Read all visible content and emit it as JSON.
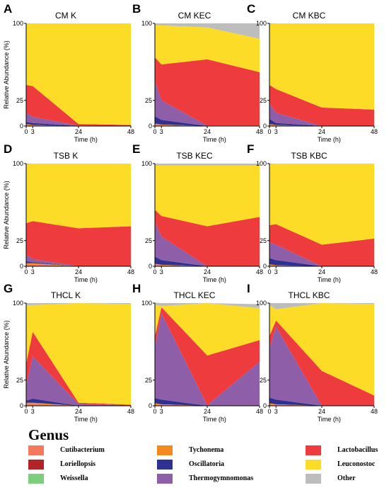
{
  "figure": {
    "legend_title": "Genus",
    "genera": [
      {
        "key": "cutibacterium",
        "label": "Cutibacterium",
        "color": "#F47A5E"
      },
      {
        "key": "tychonema",
        "label": "Tychonema",
        "color": "#F28A1E"
      },
      {
        "key": "lactobacillus",
        "label": "Lactobacillus",
        "color": "#EE3C3E"
      },
      {
        "key": "loriellopsis",
        "label": "Loriellopsis",
        "color": "#B22428"
      },
      {
        "key": "oscillatoria",
        "label": "Oscillatoria",
        "color": "#2E3192"
      },
      {
        "key": "leuconostoc",
        "label": "Leuconostoc",
        "color": "#FDDC28"
      },
      {
        "key": "weissella",
        "label": "Weissella",
        "color": "#7CCD7C"
      },
      {
        "key": "thermogymnomonas",
        "label": "Thermogymnomonas",
        "color": "#8E5EA8"
      },
      {
        "key": "other",
        "label": "Other",
        "color": "#BDBDBD"
      }
    ]
  },
  "chart_data": [
    {
      "type": "area",
      "panel": "A",
      "title": "CM K",
      "x": [
        0,
        3,
        24,
        48
      ],
      "xlabel": "Time (h)",
      "ylabel": "Relative Abundance (%)",
      "xticks": [
        "0",
        "3",
        "24",
        "48"
      ],
      "yticks": [
        "0",
        "25",
        "100"
      ],
      "xlim": [
        0,
        48
      ],
      "stack_order": [
        "cutibacterium",
        "tychonema",
        "loriellopsis",
        "weissella",
        "oscillatoria",
        "thermogymnomonas",
        "lactobacillus",
        "leuconostoc",
        "other"
      ],
      "series": [
        {
          "genus": "cutibacterium",
          "values": [
            1,
            0.5,
            0,
            0
          ]
        },
        {
          "genus": "tychonema",
          "values": [
            1,
            0.5,
            0,
            0
          ]
        },
        {
          "genus": "loriellopsis",
          "values": [
            0,
            0,
            0,
            0
          ]
        },
        {
          "genus": "weissella",
          "values": [
            0,
            0,
            0,
            0
          ]
        },
        {
          "genus": "oscillatoria",
          "values": [
            2,
            2,
            0,
            0
          ]
        },
        {
          "genus": "thermogymnomonas",
          "values": [
            9,
            6,
            0.5,
            0
          ]
        },
        {
          "genus": "lactobacillus",
          "values": [
            27,
            30,
            1.5,
            1
          ]
        },
        {
          "genus": "leuconostoc",
          "values": [
            60,
            61,
            98,
            99
          ]
        },
        {
          "genus": "other",
          "values": [
            0,
            0,
            0,
            0
          ]
        }
      ]
    },
    {
      "type": "area",
      "panel": "B",
      "title": "CM KEC",
      "x": [
        0,
        3,
        24,
        48
      ],
      "xlabel": "Time (h)",
      "ylabel": "Relative Abundance (%)",
      "xticks": [
        "0",
        "3",
        "24",
        "48"
      ],
      "yticks": [
        "0",
        "25",
        "100"
      ],
      "xlim": [
        0,
        48
      ],
      "stack_order": [
        "cutibacterium",
        "tychonema",
        "loriellopsis",
        "weissella",
        "oscillatoria",
        "thermogymnomonas",
        "lactobacillus",
        "leuconostoc",
        "other"
      ],
      "series": [
        {
          "genus": "cutibacterium",
          "values": [
            1.5,
            1,
            0,
            0
          ]
        },
        {
          "genus": "tychonema",
          "values": [
            1,
            0.5,
            0,
            0
          ]
        },
        {
          "genus": "loriellopsis",
          "values": [
            0,
            0,
            0,
            0
          ]
        },
        {
          "genus": "weissella",
          "values": [
            0,
            0,
            0,
            0
          ]
        },
        {
          "genus": "oscillatoria",
          "values": [
            7,
            4.5,
            0,
            0
          ]
        },
        {
          "genus": "thermogymnomonas",
          "values": [
            35,
            19,
            0.5,
            0.5
          ]
        },
        {
          "genus": "lactobacillus",
          "values": [
            22.5,
            35,
            64.5,
            52
          ]
        },
        {
          "genus": "leuconostoc",
          "values": [
            31,
            38,
            31,
            32.5
          ]
        },
        {
          "genus": "other",
          "values": [
            2,
            2,
            4,
            15
          ]
        }
      ]
    },
    {
      "type": "area",
      "panel": "C",
      "title": "CM KBC",
      "x": [
        0,
        3,
        24,
        48
      ],
      "xlabel": "Time (h)",
      "ylabel": "Relative Abundance (%)",
      "xticks": [
        "0",
        "3",
        "24",
        "48"
      ],
      "yticks": [
        "0",
        "25",
        "100"
      ],
      "xlim": [
        0,
        48
      ],
      "stack_order": [
        "cutibacterium",
        "tychonema",
        "loriellopsis",
        "weissella",
        "oscillatoria",
        "thermogymnomonas",
        "lactobacillus",
        "leuconostoc",
        "other"
      ],
      "series": [
        {
          "genus": "cutibacterium",
          "values": [
            1,
            0.5,
            0,
            0
          ]
        },
        {
          "genus": "tychonema",
          "values": [
            1,
            0.5,
            0,
            0
          ]
        },
        {
          "genus": "loriellopsis",
          "values": [
            0,
            0,
            0,
            0
          ]
        },
        {
          "genus": "weissella",
          "values": [
            0,
            0,
            0,
            0
          ]
        },
        {
          "genus": "oscillatoria",
          "values": [
            5,
            2,
            0,
            0
          ]
        },
        {
          "genus": "thermogymnomonas",
          "values": [
            15,
            10,
            0,
            0
          ]
        },
        {
          "genus": "lactobacillus",
          "values": [
            18,
            23,
            18,
            16
          ]
        },
        {
          "genus": "leuconostoc",
          "values": [
            59,
            64,
            82,
            84
          ]
        },
        {
          "genus": "other",
          "values": [
            1,
            0,
            0,
            0
          ]
        }
      ]
    },
    {
      "type": "area",
      "panel": "D",
      "title": "TSB K",
      "x": [
        0,
        3,
        24,
        48
      ],
      "xlabel": "Time (h)",
      "ylabel": "Relative Abundance (%)",
      "xticks": [
        "0",
        "3",
        "24",
        "48"
      ],
      "yticks": [
        "0",
        "25",
        "100"
      ],
      "xlim": [
        0,
        48
      ],
      "stack_order": [
        "cutibacterium",
        "tychonema",
        "loriellopsis",
        "weissella",
        "oscillatoria",
        "thermogymnomonas",
        "lactobacillus",
        "leuconostoc",
        "other"
      ],
      "series": [
        {
          "genus": "cutibacterium",
          "values": [
            2,
            2,
            0,
            0
          ]
        },
        {
          "genus": "tychonema",
          "values": [
            1,
            1,
            0,
            0
          ]
        },
        {
          "genus": "loriellopsis",
          "values": [
            0,
            0,
            0,
            0
          ]
        },
        {
          "genus": "weissella",
          "values": [
            0,
            0,
            0,
            0
          ]
        },
        {
          "genus": "oscillatoria",
          "values": [
            2,
            1,
            0,
            0
          ]
        },
        {
          "genus": "thermogymnomonas",
          "values": [
            6,
            3,
            0,
            0
          ]
        },
        {
          "genus": "lactobacillus",
          "values": [
            31,
            37,
            37,
            39
          ]
        },
        {
          "genus": "leuconostoc",
          "values": [
            57,
            56,
            63,
            61
          ]
        },
        {
          "genus": "other",
          "values": [
            1,
            0,
            0,
            0
          ]
        }
      ]
    },
    {
      "type": "area",
      "panel": "E",
      "title": "TSB KEC",
      "x": [
        0,
        3,
        24,
        48
      ],
      "xlabel": "Time (h)",
      "ylabel": "Relative Abundance (%)",
      "xticks": [
        "0",
        "3",
        "24",
        "48"
      ],
      "yticks": [
        "0",
        "25",
        "100"
      ],
      "xlim": [
        0,
        48
      ],
      "stack_order": [
        "cutibacterium",
        "tychonema",
        "loriellopsis",
        "weissella",
        "oscillatoria",
        "thermogymnomonas",
        "lactobacillus",
        "leuconostoc",
        "other"
      ],
      "series": [
        {
          "genus": "cutibacterium",
          "values": [
            1.5,
            1,
            0,
            0
          ]
        },
        {
          "genus": "tychonema",
          "values": [
            1,
            0.5,
            0,
            0
          ]
        },
        {
          "genus": "loriellopsis",
          "values": [
            0,
            0,
            0,
            0
          ]
        },
        {
          "genus": "weissella",
          "values": [
            0,
            0,
            0,
            0
          ]
        },
        {
          "genus": "oscillatoria",
          "values": [
            7,
            4.5,
            0,
            0
          ]
        },
        {
          "genus": "thermogymnomonas",
          "values": [
            33.5,
            23,
            0,
            0
          ]
        },
        {
          "genus": "lactobacillus",
          "values": [
            12,
            20,
            39,
            48
          ]
        },
        {
          "genus": "leuconostoc",
          "values": [
            43,
            49,
            59,
            50
          ]
        },
        {
          "genus": "other",
          "values": [
            2,
            2,
            2,
            2
          ]
        }
      ]
    },
    {
      "type": "area",
      "panel": "F",
      "title": "TSB KBC",
      "x": [
        0,
        3,
        24,
        48
      ],
      "xlabel": "Time (h)",
      "ylabel": "Relative Abundance (%)",
      "xticks": [
        "0",
        "3",
        "24",
        "48"
      ],
      "yticks": [
        "0",
        "25",
        "100"
      ],
      "xlim": [
        0,
        48
      ],
      "stack_order": [
        "cutibacterium",
        "tychonema",
        "loriellopsis",
        "weissella",
        "oscillatoria",
        "thermogymnomonas",
        "lactobacillus",
        "leuconostoc",
        "other"
      ],
      "series": [
        {
          "genus": "cutibacterium",
          "values": [
            1,
            0.5,
            0,
            0
          ]
        },
        {
          "genus": "tychonema",
          "values": [
            1,
            0.5,
            0,
            0
          ]
        },
        {
          "genus": "loriellopsis",
          "values": [
            0,
            0,
            0,
            0
          ]
        },
        {
          "genus": "weissella",
          "values": [
            0,
            0,
            0,
            0
          ]
        },
        {
          "genus": "oscillatoria",
          "values": [
            6,
            5,
            0,
            0
          ]
        },
        {
          "genus": "thermogymnomonas",
          "values": [
            15,
            15,
            0,
            0
          ]
        },
        {
          "genus": "lactobacillus",
          "values": [
            17,
            20,
            21,
            27
          ]
        },
        {
          "genus": "leuconostoc",
          "values": [
            59,
            59,
            79,
            73
          ]
        },
        {
          "genus": "other",
          "values": [
            1,
            0,
            0,
            0
          ]
        }
      ]
    },
    {
      "type": "area",
      "panel": "G",
      "title": "THCL K",
      "x": [
        0,
        3,
        24,
        48
      ],
      "xlabel": "Time (h)",
      "ylabel": "Relative Abundance (%)",
      "xticks": [
        "0",
        "3",
        "24",
        "48"
      ],
      "yticks": [
        "0",
        "25",
        "100"
      ],
      "xlim": [
        0,
        48
      ],
      "stack_order": [
        "cutibacterium",
        "tychonema",
        "loriellopsis",
        "weissella",
        "oscillatoria",
        "thermogymnomonas",
        "lactobacillus",
        "leuconostoc",
        "other"
      ],
      "series": [
        {
          "genus": "cutibacterium",
          "values": [
            2,
            2,
            0,
            0
          ]
        },
        {
          "genus": "tychonema",
          "values": [
            1,
            1,
            0,
            0
          ]
        },
        {
          "genus": "loriellopsis",
          "values": [
            0,
            0,
            0,
            0
          ]
        },
        {
          "genus": "weissella",
          "values": [
            0,
            0,
            0,
            0
          ]
        },
        {
          "genus": "oscillatoria",
          "values": [
            2,
            4,
            0,
            0
          ]
        },
        {
          "genus": "thermogymnomonas",
          "values": [
            15,
            41,
            2,
            0
          ]
        },
        {
          "genus": "lactobacillus",
          "values": [
            21,
            24,
            1,
            1
          ]
        },
        {
          "genus": "leuconostoc",
          "values": [
            57,
            26,
            97,
            98
          ]
        },
        {
          "genus": "other",
          "values": [
            2,
            2,
            0,
            1
          ]
        }
      ]
    },
    {
      "type": "area",
      "panel": "H",
      "title": "THCL KEC",
      "x": [
        0,
        3,
        24,
        48
      ],
      "xlabel": "Time (h)",
      "ylabel": "Relative Abundance (%)",
      "xticks": [
        "0",
        "3",
        "24",
        "48"
      ],
      "yticks": [
        "0",
        "25",
        "100"
      ],
      "xlim": [
        0,
        48
      ],
      "stack_order": [
        "cutibacterium",
        "tychonema",
        "loriellopsis",
        "weissella",
        "oscillatoria",
        "thermogymnomonas",
        "lactobacillus",
        "leuconostoc",
        "other"
      ],
      "series": [
        {
          "genus": "cutibacterium",
          "values": [
            1.5,
            1,
            0,
            0
          ]
        },
        {
          "genus": "tychonema",
          "values": [
            1,
            0.5,
            0,
            0
          ]
        },
        {
          "genus": "loriellopsis",
          "values": [
            0,
            0,
            0,
            0
          ]
        },
        {
          "genus": "weissella",
          "values": [
            0,
            0,
            0,
            0
          ]
        },
        {
          "genus": "oscillatoria",
          "values": [
            5,
            4.5,
            0,
            0
          ]
        },
        {
          "genus": "thermogymnomonas",
          "values": [
            49.5,
            84,
            0.5,
            43
          ]
        },
        {
          "genus": "lactobacillus",
          "values": [
            10.5,
            6,
            48.5,
            21
          ]
        },
        {
          "genus": "leuconostoc",
          "values": [
            31,
            1,
            51,
            31
          ]
        },
        {
          "genus": "other",
          "values": [
            2,
            3,
            0,
            4
          ]
        }
      ]
    },
    {
      "type": "area",
      "panel": "I",
      "title": "THCL KBC",
      "x": [
        0,
        3,
        24,
        48
      ],
      "xlabel": "Time (h)",
      "ylabel": "Relative Abundance (%)",
      "xticks": [
        "0",
        "3",
        "24",
        "48"
      ],
      "yticks": [
        "0",
        "25",
        "100"
      ],
      "xlim": [
        0,
        48
      ],
      "stack_order": [
        "cutibacterium",
        "tychonema",
        "loriellopsis",
        "weissella",
        "oscillatoria",
        "thermogymnomonas",
        "lactobacillus",
        "leuconostoc",
        "other"
      ],
      "series": [
        {
          "genus": "cutibacterium",
          "values": [
            1.5,
            1,
            0,
            0
          ]
        },
        {
          "genus": "tychonema",
          "values": [
            1,
            0.5,
            0,
            0
          ]
        },
        {
          "genus": "loriellopsis",
          "values": [
            0,
            0,
            0,
            0
          ]
        },
        {
          "genus": "weissella",
          "values": [
            0,
            0,
            0,
            0
          ]
        },
        {
          "genus": "oscillatoria",
          "values": [
            5.5,
            4.5,
            0,
            0
          ]
        },
        {
          "genus": "thermogymnomonas",
          "values": [
            48,
            71,
            0,
            0
          ]
        },
        {
          "genus": "lactobacillus",
          "values": [
            12,
            6,
            34,
            10
          ]
        },
        {
          "genus": "leuconostoc",
          "values": [
            30,
            11,
            66,
            89
          ]
        },
        {
          "genus": "other",
          "values": [
            2,
            6,
            0,
            1
          ]
        }
      ]
    }
  ]
}
